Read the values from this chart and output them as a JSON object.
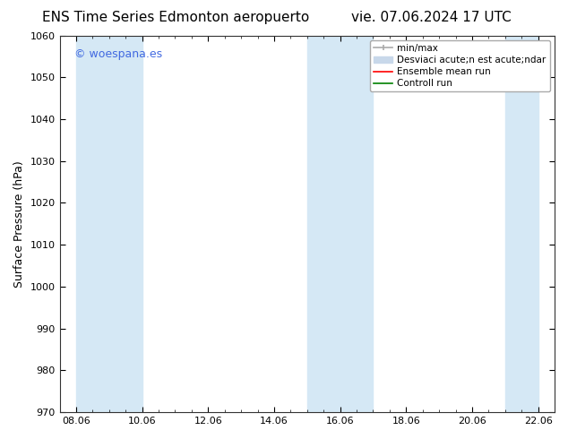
{
  "title_left": "ENS Time Series Edmonton aeropuerto",
  "title_right": "vie. 07.06.2024 17 UTC",
  "ylabel": "Surface Pressure (hPa)",
  "ylim": [
    970,
    1060
  ],
  "yticks": [
    970,
    980,
    990,
    1000,
    1010,
    1020,
    1030,
    1040,
    1050,
    1060
  ],
  "xtick_labels": [
    "08.06",
    "10.06",
    "12.06",
    "14.06",
    "16.06",
    "18.06",
    "20.06",
    "22.06"
  ],
  "xtick_positions": [
    0,
    2,
    4,
    6,
    8,
    10,
    12,
    14
  ],
  "xlim_start": -0.5,
  "xlim_end": 14.5,
  "shade_color": "#d5e8f5",
  "background_color": "#ffffff",
  "watermark_text": "© woespana.es",
  "watermark_color": "#4169e1",
  "legend_label_minmax": "min/max",
  "legend_label_desv": "Desviaci acute;n est acute;ndar",
  "legend_label_ensemble": "Ensemble mean run",
  "legend_label_control": "Controll run",
  "legend_color_minmax": "#aaaaaa",
  "legend_color_desv": "#c8d8ea",
  "legend_color_ensemble": "#ff0000",
  "legend_color_control": "#008000",
  "title_fontsize": 11,
  "tick_fontsize": 8,
  "ylabel_fontsize": 9,
  "watermark_fontsize": 9,
  "legend_fontsize": 7.5
}
